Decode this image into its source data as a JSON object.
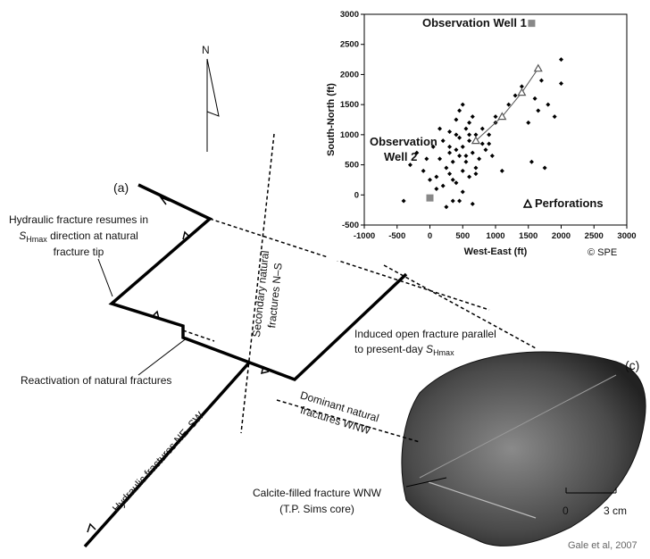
{
  "diagram": {
    "north": "N",
    "panel_a": "(a)",
    "panel_c": "(c)",
    "resume": {
      "line1": "Hydraulic fracture resumes in",
      "s": "S",
      "sub": "Hmax",
      "rest": " direction at natural",
      "line3": "fracture tip"
    },
    "reactivation": "Reactivation of natural fractures",
    "secondary": [
      "Secondary natural",
      "fractures N–S"
    ],
    "induced": {
      "line1": "Induced open fracture parallel",
      "line2": "to present-day ",
      "s": "S",
      "sub": "Hmax"
    },
    "dominant": [
      "Dominant natural",
      "fractures WNW"
    ],
    "hydraulic_ne": "Hydraulic fractures NE–SW",
    "calcite": [
      "Calcite-filled fracture WNW",
      "(T.P. Sims core)"
    ],
    "scale": [
      "0",
      "3 cm"
    ],
    "credit": "Gale et al, 2007"
  },
  "chart_data": {
    "type": "scatter",
    "xlabel": "West-East (ft)",
    "ylabel": "South-North (ft)",
    "xlim": [
      -1000,
      3000
    ],
    "ylim": [
      -500,
      3000
    ],
    "xticks": [
      -1000,
      -500,
      0,
      500,
      1000,
      1500,
      2000,
      2500,
      3000
    ],
    "yticks": [
      -500,
      0,
      500,
      1000,
      1500,
      2000,
      2500,
      3000
    ],
    "annotations": [
      "Observation Well 1",
      "Observation",
      "Well 2",
      "© SPE"
    ],
    "series": [
      {
        "color": "#000000",
        "x": [
          -400,
          -300,
          -200,
          -100,
          0,
          50,
          100,
          150,
          200,
          250,
          300,
          300,
          350,
          400,
          400,
          450,
          450,
          500,
          500,
          550,
          550,
          600,
          600,
          650,
          700,
          700,
          750,
          800,
          850,
          900,
          950,
          1000,
          200,
          300,
          400,
          500,
          600,
          700,
          250,
          350,
          450,
          550,
          650,
          150,
          100,
          -50,
          500,
          600,
          800,
          1000,
          1200,
          1300,
          1400,
          1500,
          1600,
          1700,
          1800,
          1900,
          2000,
          2000,
          1550,
          1650,
          1750,
          900,
          1100,
          400,
          350,
          450,
          300,
          650
        ],
        "values": [
          -100,
          500,
          700,
          400,
          250,
          800,
          300,
          600,
          900,
          450,
          350,
          700,
          550,
          1000,
          200,
          650,
          -100,
          800,
          400,
          1100,
          550,
          300,
          900,
          700,
          1000,
          450,
          600,
          850,
          750,
          1000,
          650,
          1200,
          150,
          1050,
          750,
          50,
          1200,
          350,
          -200,
          250,
          950,
          650,
          1300,
          1100,
          100,
          600,
          1500,
          1000,
          1100,
          1300,
          1500,
          1650,
          1800,
          1200,
          1600,
          1900,
          1500,
          1300,
          2250,
          1850,
          550,
          1400,
          450,
          850,
          400,
          1250,
          -100,
          1400,
          800,
          -150
        ]
      },
      {
        "name": "Perforations",
        "color": "#555555",
        "x": [
          700,
          1100,
          1400,
          1650
        ],
        "values": [
          900,
          1300,
          1700,
          2100
        ]
      },
      {
        "color": "#888888",
        "x": [
          1550,
          0
        ],
        "values": [
          2850,
          -50
        ]
      }
    ]
  }
}
